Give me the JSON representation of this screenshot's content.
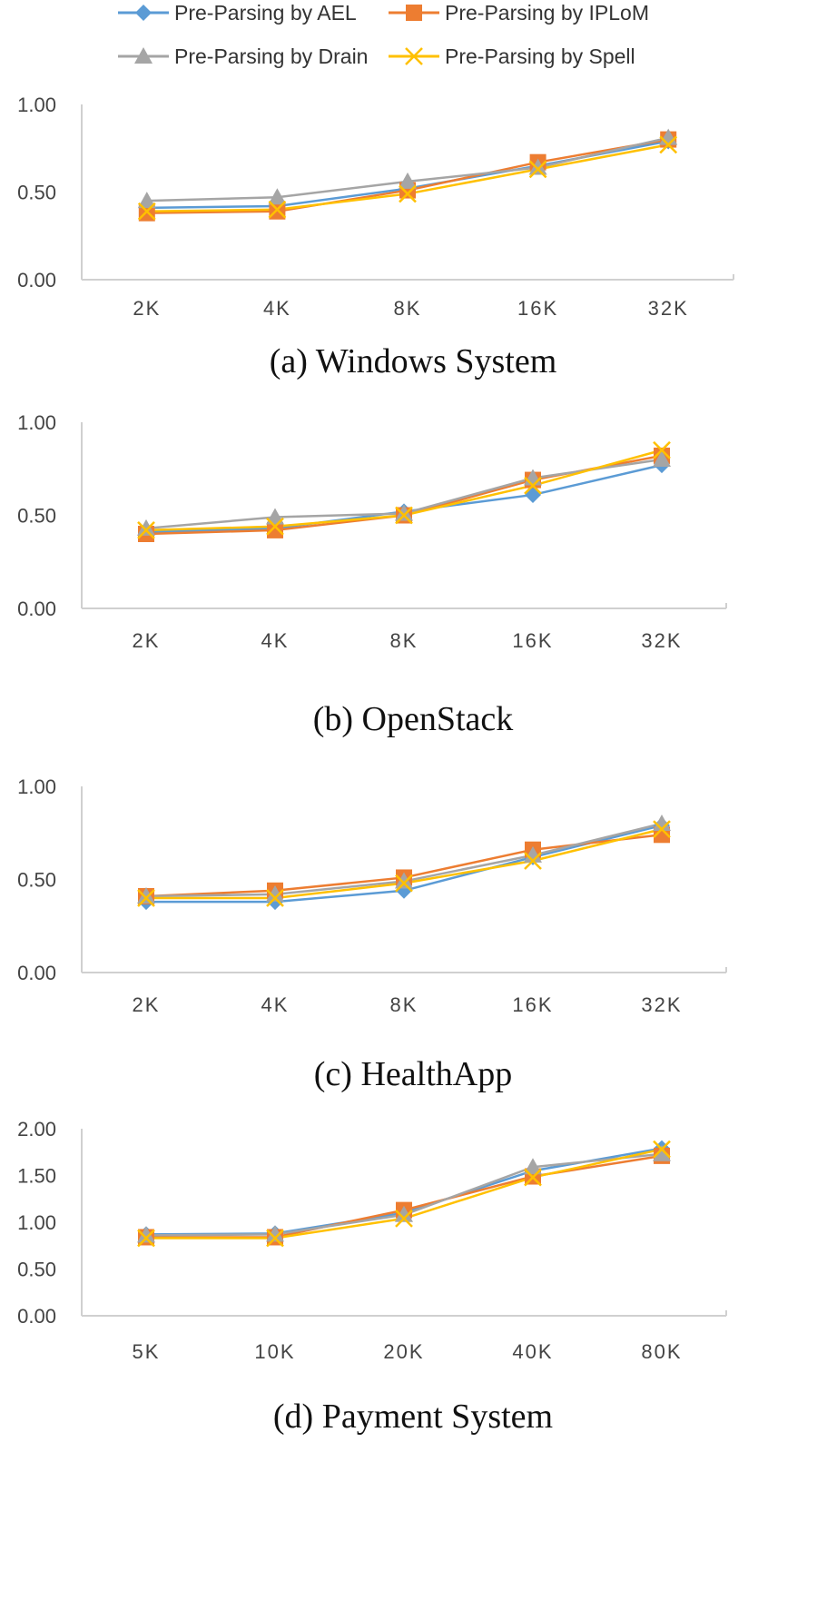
{
  "legend": [
    {
      "name": "Pre-Parsing by AEL",
      "color": "#5B9BD5",
      "marker": "diamond"
    },
    {
      "name": "Pre-Parsing by IPLoM",
      "color": "#ED7D31",
      "marker": "square"
    },
    {
      "name": "Pre-Parsing by Drain",
      "color": "#A5A5A5",
      "marker": "triangle"
    },
    {
      "name": "Pre-Parsing by Spell",
      "color": "#FFC000",
      "marker": "x"
    }
  ],
  "chart_data": [
    {
      "type": "line",
      "title": "(a) Windows System",
      "categories": [
        "2K",
        "4K",
        "8K",
        "16K",
        "32K"
      ],
      "ylim": [
        0,
        1
      ],
      "yticks": [
        "0.00",
        "0.50",
        "1.00"
      ],
      "series": [
        {
          "name": "Pre-Parsing by AEL",
          "values": [
            0.41,
            0.42,
            0.52,
            0.65,
            0.79
          ]
        },
        {
          "name": "Pre-Parsing by IPLoM",
          "values": [
            0.38,
            0.39,
            0.51,
            0.67,
            0.8
          ]
        },
        {
          "name": "Pre-Parsing by Drain",
          "values": [
            0.45,
            0.47,
            0.56,
            0.64,
            0.81
          ]
        },
        {
          "name": "Pre-Parsing by Spell",
          "values": [
            0.39,
            0.4,
            0.49,
            0.63,
            0.77
          ]
        }
      ]
    },
    {
      "type": "line",
      "title": "(b) OpenStack",
      "categories": [
        "2K",
        "4K",
        "8K",
        "16K",
        "32K"
      ],
      "ylim": [
        0,
        1
      ],
      "yticks": [
        "0.00",
        "0.50",
        "1.00"
      ],
      "series": [
        {
          "name": "Pre-Parsing by AEL",
          "values": [
            0.41,
            0.43,
            0.52,
            0.61,
            0.77
          ]
        },
        {
          "name": "Pre-Parsing by IPLoM",
          "values": [
            0.4,
            0.42,
            0.5,
            0.69,
            0.82
          ]
        },
        {
          "name": "Pre-Parsing by Drain",
          "values": [
            0.43,
            0.49,
            0.51,
            0.7,
            0.8
          ]
        },
        {
          "name": "Pre-Parsing by Spell",
          "values": [
            0.42,
            0.44,
            0.5,
            0.66,
            0.85
          ]
        }
      ]
    },
    {
      "type": "line",
      "title": "(c) HealthApp",
      "categories": [
        "2K",
        "4K",
        "8K",
        "16K",
        "32K"
      ],
      "ylim": [
        0,
        1
      ],
      "yticks": [
        "0.00",
        "0.50",
        "1.00"
      ],
      "series": [
        {
          "name": "Pre-Parsing by AEL",
          "values": [
            0.38,
            0.38,
            0.44,
            0.62,
            0.79
          ]
        },
        {
          "name": "Pre-Parsing by IPLoM",
          "values": [
            0.41,
            0.44,
            0.51,
            0.66,
            0.74
          ]
        },
        {
          "name": "Pre-Parsing by Drain",
          "values": [
            0.41,
            0.42,
            0.49,
            0.63,
            0.8
          ]
        },
        {
          "name": "Pre-Parsing by Spell",
          "values": [
            0.4,
            0.4,
            0.48,
            0.6,
            0.77
          ]
        }
      ]
    },
    {
      "type": "line",
      "title": "(d) Payment System",
      "categories": [
        "5K",
        "10K",
        "20K",
        "40K",
        "80K"
      ],
      "ylim": [
        0,
        2
      ],
      "yticks": [
        "0.00",
        "0.50",
        "1.00",
        "1.50",
        "2.00"
      ],
      "series": [
        {
          "name": "Pre-Parsing by AEL",
          "values": [
            0.87,
            0.88,
            1.1,
            1.55,
            1.79
          ]
        },
        {
          "name": "Pre-Parsing by IPLoM",
          "values": [
            0.84,
            0.84,
            1.13,
            1.49,
            1.71
          ]
        },
        {
          "name": "Pre-Parsing by Drain",
          "values": [
            0.86,
            0.87,
            1.08,
            1.59,
            1.73
          ]
        },
        {
          "name": "Pre-Parsing by Spell",
          "values": [
            0.83,
            0.83,
            1.04,
            1.48,
            1.78
          ]
        }
      ]
    }
  ]
}
